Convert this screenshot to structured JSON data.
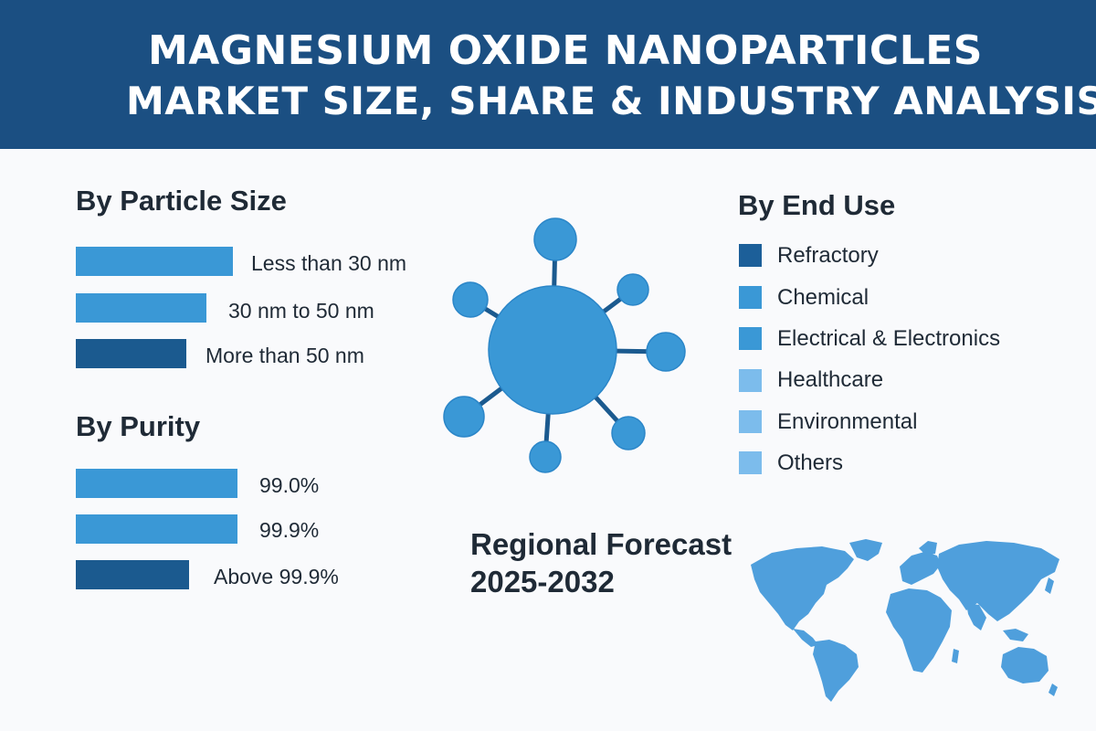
{
  "header": {
    "title_line1": "MAGNESIUM OXIDE NANOPARTICLES",
    "title_line2": "MARKET SIZE, SHARE & INDUSTRY ANALYSIS"
  },
  "particle_size": {
    "title": "By Particle Size",
    "items": [
      {
        "label": "Less than 30 nm",
        "color": "#3a98d6"
      },
      {
        "label": "30 nm to 50 nm",
        "color": "#3a98d6"
      },
      {
        "label": "More than 50 nm",
        "color": "#1b5a8f"
      }
    ]
  },
  "purity": {
    "title": "By Purity",
    "items": [
      {
        "label": "99.0%",
        "color": "#3a98d6"
      },
      {
        "label": "99.9%",
        "color": "#3a98d6"
      },
      {
        "label": "Above 99.9%",
        "color": "#1b5a8f"
      }
    ]
  },
  "end_use": {
    "title": "By End Use",
    "items": [
      {
        "label": "Refractory",
        "color": "#1c5f99"
      },
      {
        "label": "Chemical",
        "color": "#3a98d6"
      },
      {
        "label": "Electrical & Electronics",
        "color": "#3a98d6"
      },
      {
        "label": "Healthcare",
        "color": "#7cbcec"
      },
      {
        "label": "Environmental",
        "color": "#7cbcec"
      },
      {
        "label": "Others",
        "color": "#7cbcec"
      }
    ]
  },
  "forecast": {
    "line1": "Regional Forecast",
    "line2": "2025-2032"
  },
  "colors": {
    "header_bg": "#1b4f82",
    "accent": "#3a98d6",
    "dark_blue": "#1b5a8f",
    "map": "#4f9fdc"
  },
  "icons": {
    "molecule": "nanoparticle-molecule-icon",
    "map": "world-map-icon"
  }
}
